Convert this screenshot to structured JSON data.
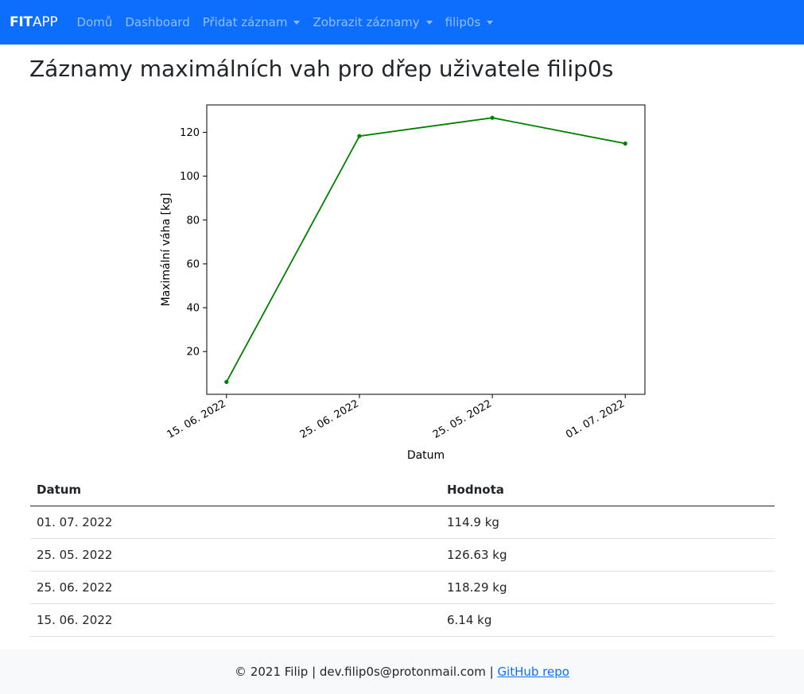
{
  "navbar": {
    "brand_bold": "FIT",
    "brand_rest": "APP",
    "items": [
      {
        "label": "Domů",
        "dropdown": false
      },
      {
        "label": "Dashboard",
        "dropdown": false
      },
      {
        "label": "Přidat záznam",
        "dropdown": true
      },
      {
        "label": "Zobrazit záznamy",
        "dropdown": true
      },
      {
        "label": "filip0s",
        "dropdown": true
      }
    ],
    "color": "#0d6efd"
  },
  "page_title": "Záznamy maximálních vah pro dřep uživatele filip0s",
  "chart_data": {
    "type": "line",
    "categories": [
      "15. 06. 2022",
      "25. 06. 2022",
      "25. 05. 2022",
      "01. 07. 2022"
    ],
    "values": [
      6.14,
      118.29,
      126.63,
      114.9
    ],
    "xlabel": "Datum",
    "ylabel": "Maximální váha [kg]",
    "yticks": [
      20,
      40,
      60,
      80,
      100,
      120
    ],
    "ylim": [
      0.5,
      132.5
    ],
    "line_color": "#008000",
    "grid": false
  },
  "table": {
    "headers": [
      "Datum",
      "Hodnota"
    ],
    "rows": [
      [
        "01. 07. 2022",
        "114.9 kg"
      ],
      [
        "25. 05. 2022",
        "126.63 kg"
      ],
      [
        "25. 06. 2022",
        "118.29 kg"
      ],
      [
        "15. 06. 2022",
        "6.14 kg"
      ]
    ]
  },
  "footer": {
    "text": "© 2021 Filip | dev.filip0s@protonmail.com | ",
    "link": "GitHub repo"
  }
}
